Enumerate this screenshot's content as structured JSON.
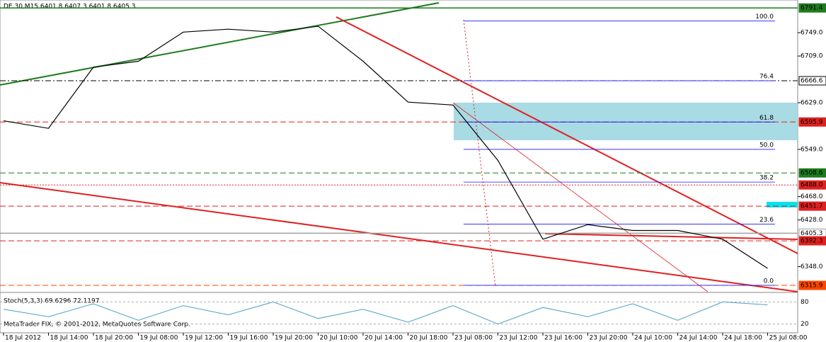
{
  "chart_data": {
    "type": "line",
    "title": "DE.30,M15  6401.8 6407.3 6401.8 6405.3",
    "footer": "MetaTrader FIX, © 2001-2012, MetaQuotes Software Corp.",
    "categories": [
      "18 Jul 2012",
      "18 Jul 14:00",
      "18 Jul 20:00",
      "19 Jul 08:00",
      "19 Jul 12:00",
      "19 Jul 16:00",
      "19 Jul 20:00",
      "20 Jul 10:00",
      "20 Jul 14:00",
      "20 Jul 18:00",
      "23 Jul 08:00",
      "23 Jul 12:00",
      "23 Jul 16:00",
      "23 Jul 20:00",
      "24 Jul 10:00",
      "24 Jul 14:00",
      "24 Jul 18:00",
      "25 Jul 08:00"
    ],
    "series": [
      {
        "name": "DE.30,M15",
        "color": "#000000",
        "values": [
          6598,
          6585,
          6690,
          6700,
          6750,
          6755,
          6750,
          6760,
          6700,
          6630,
          6625,
          6530,
          6395,
          6420,
          6410,
          6410,
          6395,
          6345
        ]
      }
    ],
    "ylim": [
      6305,
      6805
    ],
    "yticks": [
      {
        "value": 6749,
        "label": "6749.0"
      },
      {
        "value": 6709,
        "label": "6709.0"
      },
      {
        "value": 6629,
        "label": "6629.0"
      },
      {
        "value": 6549,
        "label": "6549.0"
      },
      {
        "value": 6468,
        "label": "6468.0"
      },
      {
        "value": 6428,
        "label": "6428.0"
      },
      {
        "value": 6348,
        "label": "6348.0"
      }
    ],
    "levels": [
      {
        "value": 6791.4,
        "label": "6791.4",
        "color": "#1e7b1e",
        "style": "solid"
      },
      {
        "value": 6666.6,
        "label": "6666.6",
        "color": "#000000",
        "style": "dashdot"
      },
      {
        "value": 6595.9,
        "label": "6595.9",
        "color": "#e02020",
        "style": "dashed"
      },
      {
        "value": 6508.6,
        "label": "6508.6",
        "color": "#1e7b1e",
        "style": "dashed"
      },
      {
        "value": 6488,
        "label": "6488.0",
        "color": "#e02020",
        "style": "dotted"
      },
      {
        "value": 6451.7,
        "label": "6451.7",
        "color": "#e02020",
        "style": "dashed"
      },
      {
        "value": 6405.3,
        "label": "6405.3",
        "color": "#a0a0a0",
        "style": "solid"
      },
      {
        "value": 6392.3,
        "label": "6392.3",
        "color": "#e02020",
        "style": "dashed"
      },
      {
        "value": 6315.9,
        "label": "6315.9",
        "color": "#ff4500",
        "style": "dashed"
      }
    ],
    "fibonacci": [
      {
        "value": 6769,
        "label": "100.0"
      },
      {
        "value": 6666.6,
        "label": "76.4"
      },
      {
        "value": 6595.9,
        "label": "61.8"
      },
      {
        "value": 6549,
        "label": "50.0"
      },
      {
        "value": 6493,
        "label": "38.2"
      },
      {
        "value": 6421,
        "label": "23.6"
      },
      {
        "value": 6316,
        "label": "0.0"
      }
    ],
    "stochastic": {
      "title": "Stoch(5,3,3) 69.6296 72.1197",
      "ylim": [
        0,
        100
      ],
      "yticks": [
        80,
        20
      ],
      "color": "#4aa0c8",
      "values": [
        60,
        40,
        75,
        30,
        70,
        45,
        80,
        35,
        60,
        25,
        70,
        20,
        65,
        40,
        75,
        30,
        80,
        72
      ]
    }
  }
}
